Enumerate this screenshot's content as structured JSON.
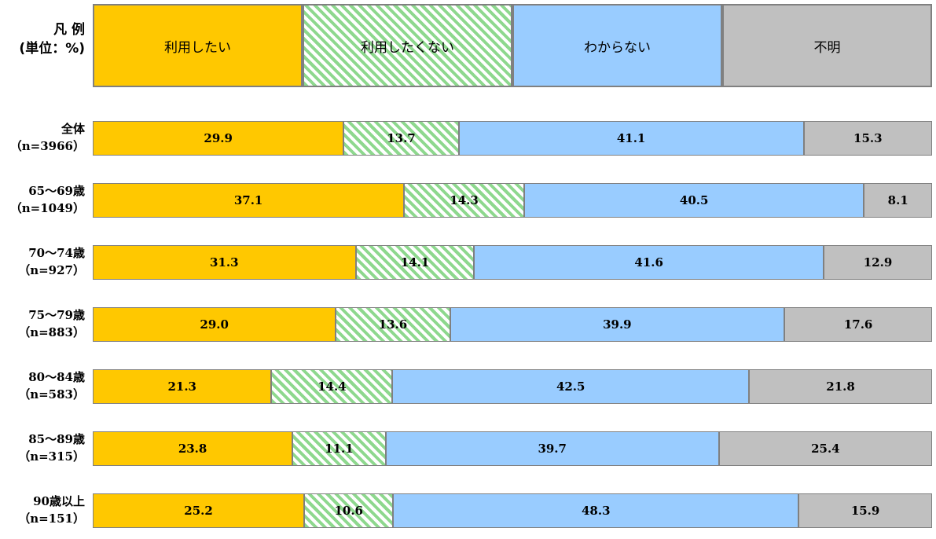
{
  "legend": {
    "title_line1": "凡 例",
    "title_line2": "(単位：%)"
  },
  "chart_data": {
    "type": "bar",
    "orientation": "horizontal",
    "stacked": "100%",
    "unit": "%",
    "grid": false,
    "legend_placement": "top",
    "categories": [
      {
        "label": "全体",
        "n": "（n=3966）"
      },
      {
        "label": "65～69歳",
        "n": "（n=1049）"
      },
      {
        "label": "70～74歳",
        "n": "（n=927）"
      },
      {
        "label": "75～79歳",
        "n": "（n=883）"
      },
      {
        "label": "80～84歳",
        "n": "（n=583）"
      },
      {
        "label": "85～89歳",
        "n": "（n=315）"
      },
      {
        "label": "90歳以上",
        "n": "（n=151）"
      }
    ],
    "series": [
      {
        "name": "利用したい",
        "color": "#FFC800",
        "pattern": "solid",
        "values": [
          29.9,
          37.1,
          31.3,
          29.0,
          21.3,
          23.8,
          25.2
        ],
        "labels": [
          "29.9",
          "37.1",
          "31.3",
          "29.0",
          "21.3",
          "23.8",
          "25.2"
        ]
      },
      {
        "name": "利用したくない",
        "color": "#8ED88E",
        "pattern": "diagonal-stripes",
        "values": [
          13.7,
          14.3,
          14.1,
          13.6,
          14.4,
          11.1,
          10.6
        ],
        "labels": [
          "13.7",
          "14.3",
          "14.1",
          "13.6",
          "14.4",
          "11.1",
          "10.6"
        ]
      },
      {
        "name": "わからない",
        "color": "#99CCFF",
        "pattern": "solid",
        "values": [
          41.1,
          40.5,
          41.6,
          39.9,
          42.5,
          39.7,
          48.3
        ],
        "labels": [
          "41.1",
          "40.5",
          "41.6",
          "39.9",
          "42.5",
          "39.7",
          "48.3"
        ]
      },
      {
        "name": "不明",
        "color": "#C0C0C0",
        "pattern": "solid",
        "values": [
          15.3,
          8.1,
          12.9,
          17.6,
          21.8,
          25.4,
          15.9
        ],
        "labels": [
          "15.3",
          "8.1",
          "12.9",
          "17.6",
          "21.8",
          "25.4",
          "15.9"
        ]
      }
    ]
  }
}
